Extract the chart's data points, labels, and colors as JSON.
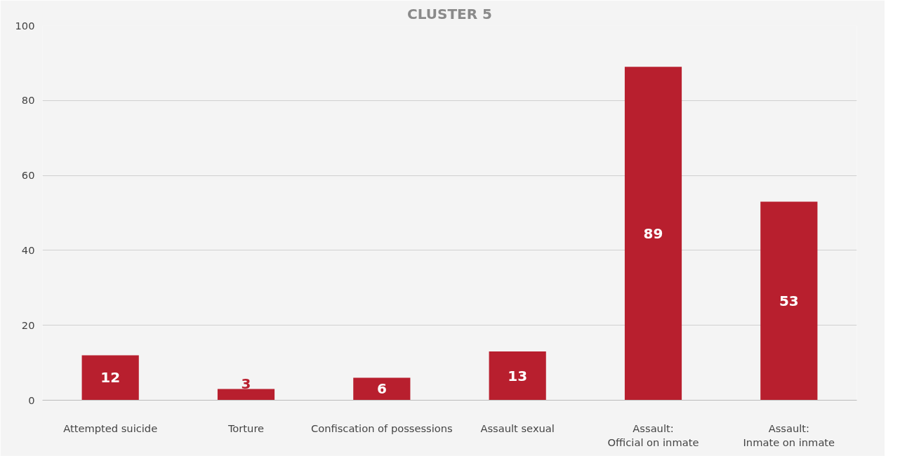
{
  "chart_data": {
    "type": "bar",
    "title": "CLUSTER 5",
    "categories": [
      "Attempted suicide",
      "Torture",
      "Confiscation of possessions",
      "Assault sexual",
      "Assault:\nOfficial on inmate",
      "Assault:\nInmate on inmate"
    ],
    "values": [
      12,
      3,
      6,
      13,
      89,
      53
    ],
    "color": "#b81f2e",
    "ylim": [
      0,
      100
    ],
    "yticks": [
      0,
      20,
      40,
      60,
      80,
      100
    ],
    "grid": "y",
    "data_labels": true
  }
}
